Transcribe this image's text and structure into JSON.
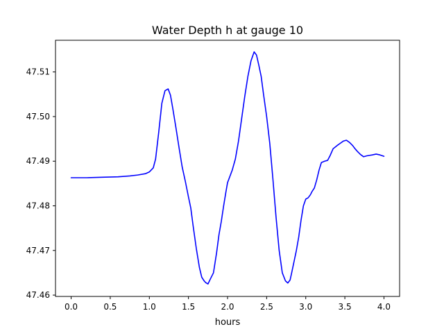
{
  "chart_data": {
    "type": "line",
    "title": "Water Depth h at gauge 10",
    "xlabel": "hours",
    "ylabel": "",
    "xlim": [
      -0.2,
      4.2
    ],
    "ylim": [
      47.4597,
      47.5171
    ],
    "xticks": [
      0.0,
      0.5,
      1.0,
      1.5,
      2.0,
      2.5,
      3.0,
      3.5,
      4.0
    ],
    "xtick_labels": [
      "0.0",
      "0.5",
      "1.0",
      "1.5",
      "2.0",
      "2.5",
      "3.0",
      "3.5",
      "4.0"
    ],
    "yticks": [
      47.46,
      47.47,
      47.48,
      47.49,
      47.5,
      47.51
    ],
    "ytick_labels": [
      "47.46",
      "47.47",
      "47.48",
      "47.49",
      "47.50",
      "47.51"
    ],
    "grid": false,
    "legend": false,
    "series": [
      {
        "color": "#0000ff",
        "x": [
          0.0,
          0.2,
          0.4,
          0.6,
          0.75,
          0.85,
          0.95,
          1.0,
          1.05,
          1.08,
          1.12,
          1.16,
          1.2,
          1.24,
          1.27,
          1.3,
          1.34,
          1.38,
          1.42,
          1.46,
          1.5,
          1.53,
          1.56,
          1.6,
          1.64,
          1.67,
          1.7,
          1.72,
          1.75,
          1.78,
          1.82,
          1.86,
          1.89,
          1.92,
          1.95,
          1.98,
          2.0,
          2.03,
          2.06,
          2.1,
          2.14,
          2.18,
          2.22,
          2.26,
          2.3,
          2.34,
          2.37,
          2.4,
          2.43,
          2.46,
          2.5,
          2.54,
          2.58,
          2.62,
          2.66,
          2.7,
          2.74,
          2.77,
          2.8,
          2.82,
          2.85,
          2.88,
          2.91,
          2.94,
          2.97,
          3.0,
          3.03,
          3.06,
          3.08,
          3.11,
          3.14,
          3.17,
          3.2,
          3.24,
          3.28,
          3.31,
          3.35,
          3.4,
          3.44,
          3.48,
          3.52,
          3.56,
          3.6,
          3.63,
          3.66,
          3.7,
          3.74,
          3.78,
          3.81,
          3.85,
          3.9,
          3.95,
          4.0
        ],
        "values": [
          47.4863,
          47.4863,
          47.4864,
          47.4865,
          47.4867,
          47.4869,
          47.4872,
          47.4876,
          47.4885,
          47.4905,
          47.4965,
          47.503,
          47.5058,
          47.5062,
          47.5048,
          47.5018,
          47.4975,
          47.493,
          47.4887,
          47.4855,
          47.482,
          47.4795,
          47.4755,
          47.4705,
          47.4662,
          47.464,
          47.4632,
          47.4628,
          47.4625,
          47.4636,
          47.465,
          47.4695,
          47.4735,
          47.4765,
          47.48,
          47.4832,
          47.4852,
          47.4866,
          47.488,
          47.4905,
          47.4945,
          47.4995,
          47.5045,
          47.509,
          47.5125,
          47.5145,
          47.5138,
          47.5115,
          47.509,
          47.505,
          47.5,
          47.494,
          47.486,
          47.4775,
          47.47,
          47.465,
          47.4632,
          47.4627,
          47.4634,
          47.465,
          47.4675,
          47.47,
          47.473,
          47.4768,
          47.48,
          47.4815,
          47.4818,
          47.4825,
          47.4832,
          47.484,
          47.4858,
          47.488,
          47.4897,
          47.49,
          47.4902,
          47.4912,
          47.4928,
          47.4935,
          47.494,
          47.4945,
          47.4947,
          47.4942,
          47.4935,
          47.4928,
          47.4922,
          47.4915,
          47.491,
          47.4912,
          47.4913,
          47.4914,
          47.4916,
          47.4914,
          47.4911
        ]
      }
    ]
  }
}
